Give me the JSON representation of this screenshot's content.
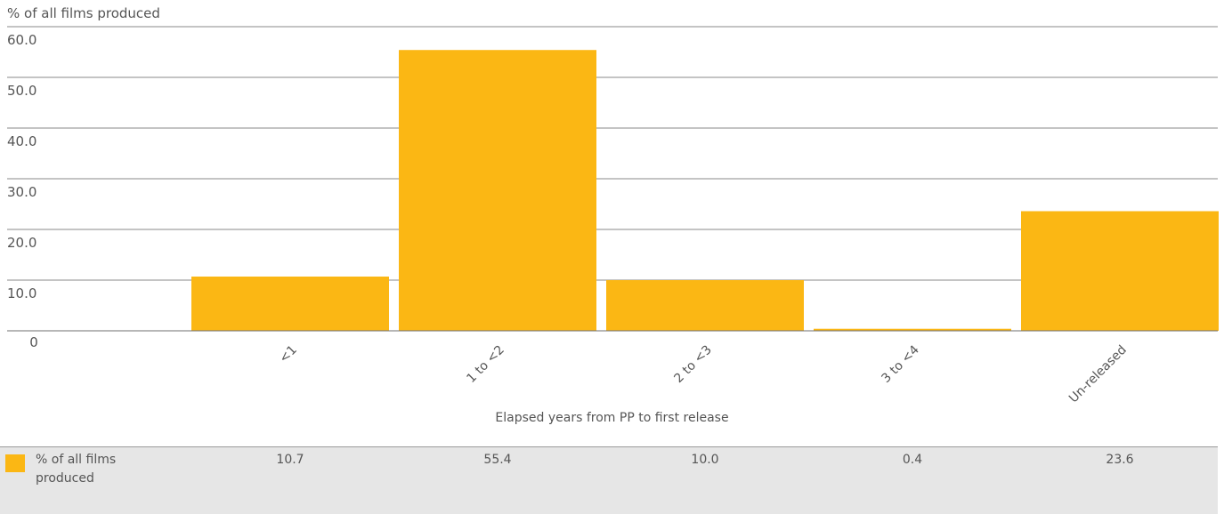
{
  "chart_data": {
    "type": "bar",
    "title": "",
    "ylabel": "% of all films produced",
    "xlabel": "Elapsed years from PP to first release",
    "categories": [
      "<1",
      "1 to <2",
      "2 to <3",
      "3 to <4",
      "Un-released"
    ],
    "series": [
      {
        "name": "% of all films produced",
        "values": [
          10.7,
          55.4,
          10.0,
          0.4,
          23.6
        ],
        "color": "#fbb714"
      }
    ],
    "yticks": [
      "0",
      "10.0",
      "20.0",
      "30.0",
      "40.0",
      "50.0",
      "60.0"
    ],
    "ylim": [
      0,
      60
    ],
    "grid": true,
    "legend": "bottom-left",
    "table_values": [
      "10.7",
      "55.4",
      "10.0",
      "0.4",
      "23.6"
    ]
  }
}
